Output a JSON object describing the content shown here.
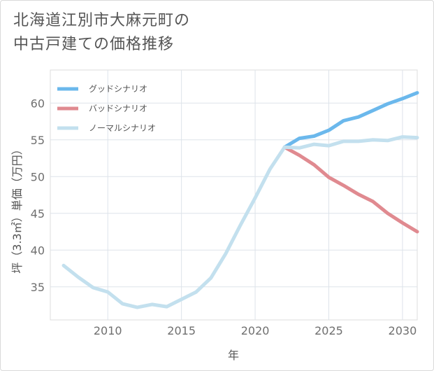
{
  "title_lines": [
    "北海道江別市大麻元町の",
    "中古戸建ての価格推移"
  ],
  "chart_data": {
    "type": "line",
    "xlabel": "年",
    "ylabel": "坪（3.3㎡）単価（万円）",
    "xlim": [
      2006.1,
      2031
    ],
    "ylim": [
      30.5,
      64.5
    ],
    "xticks": [
      2010,
      2015,
      2020,
      2025,
      2030
    ],
    "yticks": [
      35,
      40,
      45,
      50,
      55,
      60
    ],
    "grid": true,
    "legend_position": "top-left",
    "series": [
      {
        "name": "グッドシナリオ",
        "color": "#6bb8ec",
        "x": [
          2022,
          2023,
          2024,
          2025,
          2026,
          2027,
          2028,
          2029,
          2030,
          2031
        ],
        "y": [
          54.0,
          55.2,
          55.5,
          56.3,
          57.6,
          58.1,
          59.0,
          59.9,
          60.6,
          61.4
        ]
      },
      {
        "name": "バッドシナリオ",
        "color": "#e08a90",
        "x": [
          2022,
          2023,
          2024,
          2025,
          2026,
          2027,
          2028,
          2029,
          2030,
          2031
        ],
        "y": [
          54.0,
          52.9,
          51.6,
          49.9,
          48.8,
          47.6,
          46.6,
          45.0,
          43.7,
          42.5
        ]
      },
      {
        "name": "ノーマルシナリオ",
        "color": "#c3e0ee",
        "x": [
          2007,
          2008,
          2009,
          2010,
          2011,
          2012,
          2013,
          2014,
          2015,
          2016,
          2017,
          2018,
          2019,
          2020,
          2021,
          2022,
          2023,
          2024,
          2025,
          2026,
          2027,
          2028,
          2029,
          2030,
          2031
        ],
        "y": [
          37.9,
          36.3,
          34.9,
          34.3,
          32.7,
          32.2,
          32.6,
          32.3,
          33.3,
          34.3,
          36.2,
          39.5,
          43.4,
          47.1,
          51.0,
          54.0,
          53.9,
          54.4,
          54.2,
          54.8,
          54.8,
          55.0,
          54.9,
          55.4,
          55.3
        ]
      }
    ]
  }
}
